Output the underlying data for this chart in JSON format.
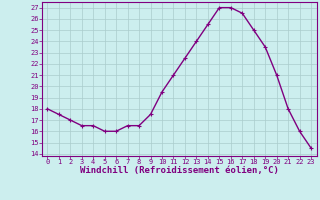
{
  "x": [
    0,
    1,
    2,
    3,
    4,
    5,
    6,
    7,
    8,
    9,
    10,
    11,
    12,
    13,
    14,
    15,
    16,
    17,
    18,
    19,
    20,
    21,
    22,
    23
  ],
  "y": [
    18,
    17.5,
    17,
    16.5,
    16.5,
    16,
    16,
    16.5,
    16.5,
    17.5,
    19.5,
    21,
    22.5,
    24,
    25.5,
    27,
    27,
    26.5,
    25,
    23.5,
    21,
    18,
    16,
    14.5
  ],
  "title": "",
  "xlabel": "Windchill (Refroidissement éolien,°C)",
  "ylabel": "",
  "xlim": [
    -0.5,
    23.5
  ],
  "ylim": [
    13.8,
    27.5
  ],
  "yticks": [
    14,
    15,
    16,
    17,
    18,
    19,
    20,
    21,
    22,
    23,
    24,
    25,
    26,
    27
  ],
  "xticks": [
    0,
    1,
    2,
    3,
    4,
    5,
    6,
    7,
    8,
    9,
    10,
    11,
    12,
    13,
    14,
    15,
    16,
    17,
    18,
    19,
    20,
    21,
    22,
    23
  ],
  "line_color": "#800080",
  "marker": "+",
  "bg_color": "#cceeee",
  "grid_color": "#aacccc",
  "border_color": "#800080",
  "tick_label_color": "#800080",
  "xlabel_color": "#800080",
  "tick_fontsize": 5.0,
  "xlabel_fontsize": 6.5,
  "marker_size": 3.5,
  "marker_edge_width": 0.8,
  "line_width": 1.0
}
